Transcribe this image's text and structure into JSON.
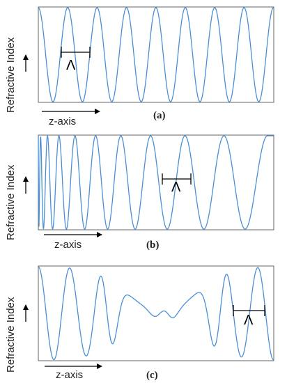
{
  "colors": {
    "wave": "#4a8fd6",
    "frame": "#666666",
    "text": "#222222"
  },
  "panels": [
    {
      "id": "a",
      "y_label": "Refractive Index",
      "x_label": "z-axis",
      "caption": "(a)",
      "period_symbol": "Λ",
      "profile": "uniform"
    },
    {
      "id": "b",
      "y_label": "Refractive Index",
      "x_label": "z-axis",
      "caption": "(b)",
      "period_symbol": "Λ",
      "profile": "chirped"
    },
    {
      "id": "c",
      "y_label": "Refractive Index",
      "x_label": "z-axis",
      "caption": "(c)",
      "period_symbol": "Λ",
      "profile": "phase-shifted"
    }
  ]
}
